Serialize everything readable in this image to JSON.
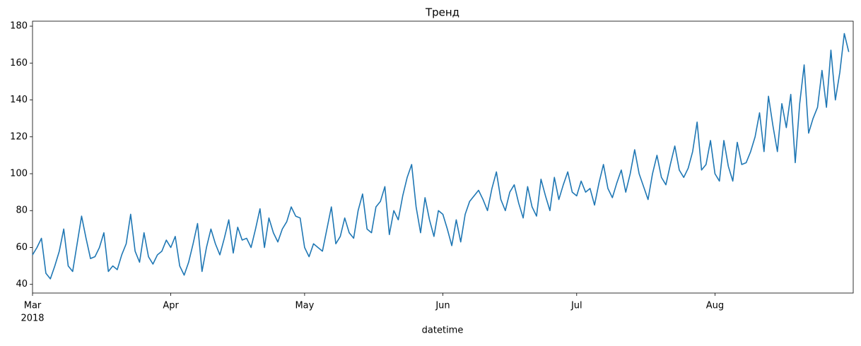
{
  "chart_data": {
    "type": "line",
    "title": "Тренд",
    "x_label": "datetime",
    "x_year": "2018",
    "color": "#1f77b4",
    "categories": [
      "Mar",
      null,
      null,
      null,
      null,
      null,
      null,
      null,
      null,
      null,
      null,
      null,
      null,
      null,
      null,
      null,
      null,
      null,
      null,
      null,
      null,
      null,
      null,
      null,
      null,
      null,
      null,
      null,
      null,
      null,
      null,
      "Apr",
      null,
      null,
      null,
      null,
      null,
      null,
      null,
      null,
      null,
      null,
      null,
      null,
      null,
      null,
      null,
      null,
      null,
      null,
      null,
      null,
      null,
      null,
      null,
      null,
      null,
      null,
      null,
      null,
      null,
      "May",
      null,
      null,
      null,
      null,
      null,
      null,
      null,
      null,
      null,
      null,
      null,
      null,
      null,
      null,
      null,
      null,
      null,
      null,
      null,
      null,
      null,
      null,
      null,
      null,
      null,
      null,
      null,
      null,
      null,
      null,
      "Jun",
      null,
      null,
      null,
      null,
      null,
      null,
      null,
      null,
      null,
      null,
      null,
      null,
      null,
      null,
      null,
      null,
      null,
      null,
      null,
      null,
      null,
      null,
      null,
      null,
      null,
      null,
      null,
      null,
      null,
      "Jul",
      null,
      null,
      null,
      null,
      null,
      null,
      null,
      null,
      null,
      null,
      null,
      null,
      null,
      null,
      null,
      null,
      null,
      null,
      null,
      null,
      null,
      null,
      null,
      null,
      null,
      null,
      null,
      null,
      null,
      null,
      "Aug",
      null,
      null,
      null,
      null,
      null,
      null,
      null,
      null,
      null,
      null,
      null,
      null,
      null,
      null,
      null,
      null,
      null,
      null,
      null,
      null,
      null,
      null,
      null,
      null,
      null,
      null,
      null,
      null,
      null,
      null
    ],
    "values": [
      56,
      60,
      65,
      46,
      43,
      50,
      58,
      70,
      50,
      47,
      62,
      77,
      65,
      54,
      55,
      60,
      68,
      47,
      50,
      48,
      56,
      62,
      78,
      58,
      52,
      68,
      55,
      51,
      56,
      58,
      64,
      60,
      66,
      50,
      45,
      52,
      62,
      73,
      47,
      60,
      70,
      62,
      56,
      65,
      75,
      57,
      71,
      64,
      65,
      60,
      70,
      81,
      60,
      76,
      68,
      63,
      70,
      74,
      82,
      77,
      76,
      60,
      55,
      62,
      60,
      58,
      70,
      82,
      62,
      66,
      76,
      68,
      65,
      80,
      89,
      70,
      68,
      82,
      85,
      93,
      67,
      80,
      75,
      88,
      98,
      105,
      82,
      68,
      87,
      75,
      66,
      80,
      78,
      70,
      61,
      75,
      63,
      78,
      85,
      88,
      91,
      86,
      80,
      92,
      101,
      86,
      80,
      90,
      94,
      84,
      76,
      93,
      82,
      77,
      97,
      88,
      80,
      98,
      86,
      94,
      101,
      90,
      88,
      96,
      90,
      92,
      83,
      95,
      105,
      92,
      87,
      95,
      102,
      90,
      100,
      113,
      100,
      93,
      86,
      100,
      110,
      98,
      94,
      105,
      115,
      102,
      98,
      103,
      112,
      128,
      102,
      105,
      118,
      100,
      96,
      118,
      104,
      96,
      117,
      105,
      106,
      112,
      120,
      133,
      112,
      142,
      126,
      112,
      138,
      125,
      143,
      106,
      138,
      159,
      122,
      130,
      136,
      156,
      136,
      167,
      140,
      155,
      176,
      166
    ],
    "ylim": [
      35.3,
      182.7
    ],
    "yticks": [
      40,
      60,
      80,
      100,
      120,
      140,
      160,
      180
    ]
  }
}
